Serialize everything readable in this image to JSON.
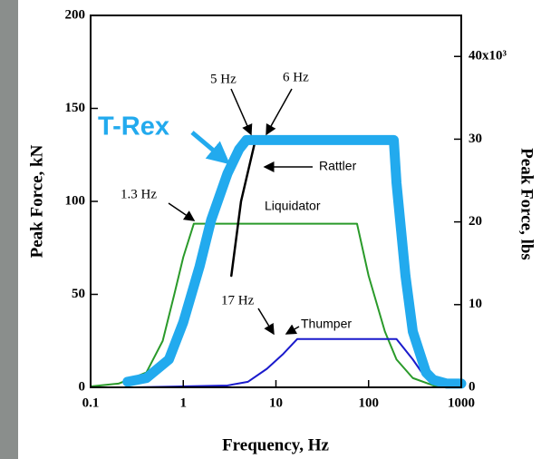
{
  "chart_data": {
    "type": "line",
    "xlabel": "Frequency, Hz",
    "ylabel": "Peak Force, kN",
    "y2label": "Peak Force, lbs",
    "xscale": "log",
    "xlim": [
      0.1,
      1000
    ],
    "xticks": [
      0.1,
      1,
      10,
      100,
      1000
    ],
    "ylim": [
      0,
      200
    ],
    "yticks": [
      0,
      50,
      100,
      150,
      200
    ],
    "y2lim": [
      0,
      44.96
    ],
    "y2ticks": [
      0,
      10,
      20,
      30,
      {
        "value": 40,
        "label": "40x10³"
      }
    ],
    "annotations": [
      "5 Hz",
      "6 Hz",
      "1.3 Hz",
      "17 Hz"
    ],
    "series": [
      {
        "name": "Liquidator",
        "color": "#2a9a2a",
        "width": 2,
        "x": [
          0.1,
          0.2,
          0.4,
          0.6,
          0.8,
          1,
          1.3,
          75,
          100,
          150,
          200,
          300,
          500,
          1000
        ],
        "values": [
          0.5,
          2,
          8,
          25,
          50,
          70,
          88,
          88,
          60,
          30,
          15,
          5,
          1,
          0
        ]
      },
      {
        "name": "Thumper",
        "color": "#1a1acc",
        "width": 2,
        "x": [
          0.3,
          3,
          5,
          8,
          12,
          17,
          200,
          300,
          400,
          600,
          1000
        ],
        "values": [
          0,
          1,
          3,
          10,
          18,
          26,
          26,
          15,
          6,
          1,
          0
        ]
      },
      {
        "name": "Rattler",
        "color": "#000000",
        "width": 2.5,
        "x": [
          3.3,
          4.2,
          6,
          170
        ],
        "values": [
          60,
          100,
          133,
          133
        ]
      },
      {
        "name": "T-Rex",
        "color": "#22aaee",
        "width": 11,
        "x": [
          0.25,
          0.4,
          0.7,
          1,
          1.5,
          2,
          3,
          4,
          4.8,
          100,
          187,
          200,
          250,
          300,
          417,
          500,
          700,
          1000
        ],
        "values": [
          3,
          5,
          15,
          35,
          65,
          90,
          115,
          128,
          133,
          133,
          133,
          110,
          60,
          30,
          8,
          4,
          2,
          2
        ]
      }
    ]
  }
}
